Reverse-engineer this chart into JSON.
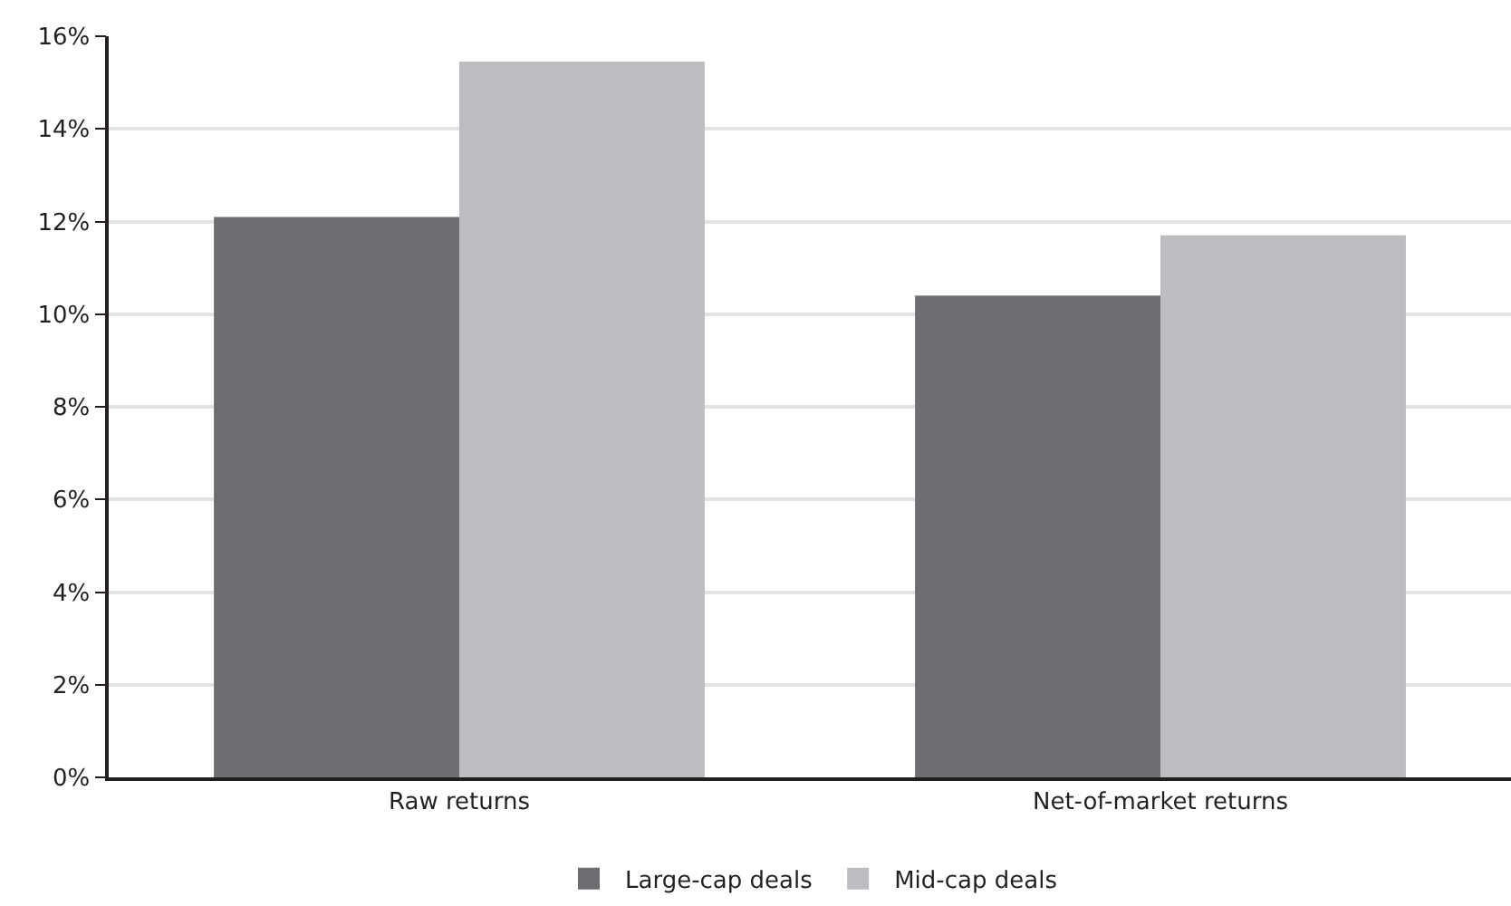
{
  "chart_data": {
    "type": "bar",
    "categories": [
      "Raw returns",
      "Net-of-market returns"
    ],
    "series": [
      {
        "name": "Large-cap deals",
        "color": "#6d6e71",
        "values": [
          12.1,
          10.4
        ]
      },
      {
        "name": "Mid-cap deals",
        "color": "#bcbdc0",
        "values": [
          15.45,
          11.7
        ]
      }
    ],
    "ylim": [
      0,
      16
    ],
    "yticks": [
      {
        "value": 0,
        "label": "0%"
      },
      {
        "value": 2,
        "label": "2%"
      },
      {
        "value": 4,
        "label": "4%"
      },
      {
        "value": 6,
        "label": "6%"
      },
      {
        "value": 8,
        "label": "8%"
      },
      {
        "value": 10,
        "label": "10%"
      },
      {
        "value": 12,
        "label": "12%"
      },
      {
        "value": 14,
        "label": "14%"
      },
      {
        "value": 16,
        "label": "16%"
      }
    ],
    "grid": "y",
    "legend": "bottom"
  }
}
